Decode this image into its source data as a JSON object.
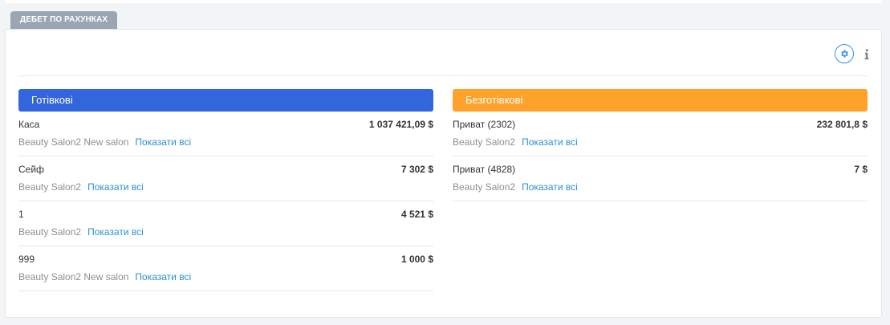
{
  "tab_label": "ДЕБЕТ ПО РАХУНКАХ",
  "colors": {
    "cash_header": "#3366dd",
    "cashless_header": "#ffa22b",
    "tab_bg": "#9aa6b2",
    "link": "#2d8fd6"
  },
  "toolbar": {
    "settings_icon": "gear-icon",
    "info_icon": "info-icon"
  },
  "cash": {
    "title": "Готівкові",
    "rows": [
      {
        "name": "Каса",
        "amount": "1 037 421,09 $",
        "location": "Beauty Salon2 New salon",
        "link": "Показати всі"
      },
      {
        "name": "Сейф",
        "amount": "7 302 $",
        "location": "Beauty Salon2",
        "link": "Показати всі"
      },
      {
        "name": "1",
        "amount": "4 521 $",
        "location": "Beauty Salon2",
        "link": "Показати всі"
      },
      {
        "name": "999",
        "amount": "1 000 $",
        "location": "Beauty Salon2 New salon",
        "link": "Показати всі"
      }
    ]
  },
  "cashless": {
    "title": "Безготівкові",
    "rows": [
      {
        "name": "Приват (2302)",
        "amount": "232 801,8 $",
        "location": "Beauty Salon2",
        "link": "Показати всі"
      },
      {
        "name": "Приват (4828)",
        "amount": "7 $",
        "location": "Beauty Salon2",
        "link": "Показати всі"
      }
    ]
  }
}
